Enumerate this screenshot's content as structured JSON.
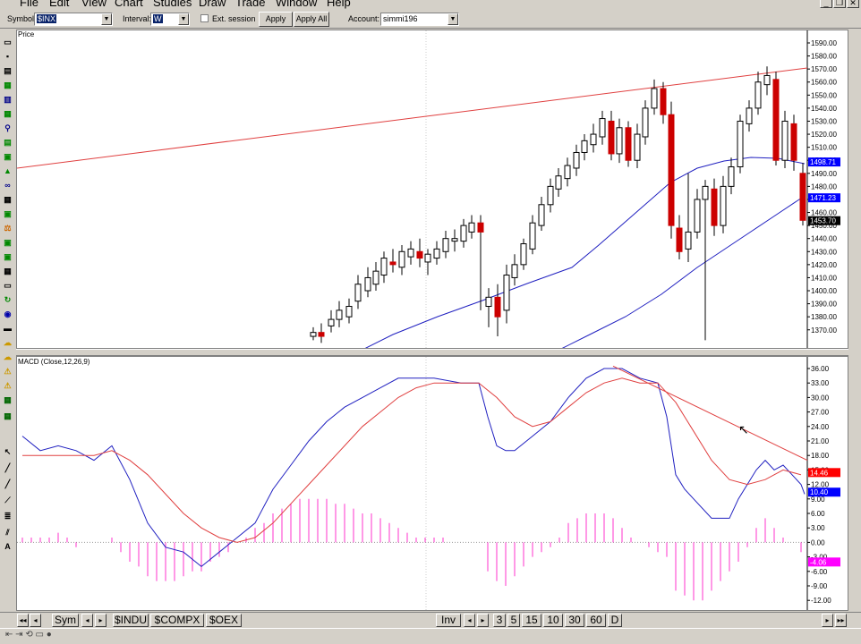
{
  "menu": [
    "File",
    "Edit",
    "View",
    "Chart",
    "Studies",
    "Draw",
    "Trade",
    "Window",
    "Help"
  ],
  "toolbar": {
    "symbol_label": "Symbol:",
    "symbol_value": "$INX",
    "interval_label": "Interval:",
    "interval_value": "W",
    "ext_session_label": "Ext. session",
    "apply_label": "Apply",
    "apply_all_label": "Apply All",
    "account_label": "Account:",
    "account_value": "simmi196"
  },
  "price_pane": {
    "label": "Price",
    "ticks": [
      "1590.00",
      "1580.00",
      "1570.00",
      "1560.00",
      "1550.00",
      "1540.00",
      "1530.00",
      "1520.00",
      "1510.00",
      "1500.00",
      "1490.00",
      "1480.00",
      "1470.00",
      "1460.00",
      "1450.00",
      "1440.00",
      "1430.00",
      "1420.00",
      "1410.00",
      "1400.00",
      "1390.00",
      "1380.00",
      "1370.00"
    ],
    "markers": [
      {
        "value": "1498.71",
        "color": "#0000ff"
      },
      {
        "value": "1471.23",
        "color": "#0000ff"
      },
      {
        "value": "1453.70",
        "color": "#000000"
      }
    ]
  },
  "macd_pane": {
    "label": "MACD (Close,12,26,9)",
    "ticks": [
      "36.00",
      "33.00",
      "30.00",
      "27.00",
      "24.00",
      "21.00",
      "18.00",
      "15.00",
      "12.00",
      "9.00",
      "6.00",
      "3.00",
      "0.00",
      "-3.00",
      "-6.00",
      "-9.00",
      "-12.00"
    ],
    "markers": [
      {
        "value": "14.46",
        "color": "#ff0000"
      },
      {
        "value": "10.40",
        "color": "#0000ff"
      },
      {
        "value": "-4.06",
        "color": "#ff00ff"
      }
    ]
  },
  "bottom": {
    "sym_tab": "Sym",
    "symbol_tabs": [
      "$INDU",
      "$COMPX",
      "$OEX"
    ],
    "inv_tab": "Inv",
    "interval_tabs": [
      "3",
      "5",
      "15",
      "10",
      "30",
      "60",
      "D"
    ]
  },
  "colors": {
    "bull": "#ffffff",
    "bear": "#cc0000",
    "ma": "#2020c0",
    "trend": "#e04040",
    "macd": "#2020c0",
    "signal": "#e04040",
    "hist": "#ff33cc"
  }
}
